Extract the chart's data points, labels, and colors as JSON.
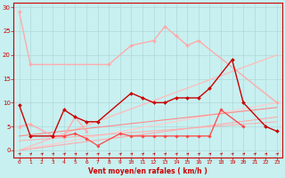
{
  "background_color": "#c8f0f0",
  "grid_color": "#b0d8d8",
  "xlabel": "Vent moyen/en rafales ( km/h )",
  "xlim": [
    -0.5,
    23.5
  ],
  "ylim": [
    -1.5,
    31
  ],
  "yticks": [
    0,
    5,
    10,
    15,
    20,
    25,
    30
  ],
  "xticks": [
    0,
    1,
    2,
    3,
    4,
    5,
    6,
    7,
    8,
    9,
    10,
    11,
    12,
    13,
    14,
    15,
    16,
    17,
    18,
    19,
    20,
    21,
    22,
    23
  ],
  "line1_x": [
    0,
    1,
    8,
    10,
    12,
    13,
    14,
    15,
    16,
    23
  ],
  "line1_y": [
    29,
    18,
    18,
    22,
    23,
    26,
    24,
    22,
    23,
    10
  ],
  "line1_color": "#ffaaaa",
  "line2_x": [
    0,
    1,
    3,
    4,
    5,
    6,
    7,
    10,
    11,
    12,
    13,
    14,
    15,
    16,
    17,
    19,
    20,
    22,
    23
  ],
  "line2_y": [
    9.5,
    3,
    3,
    8.5,
    7,
    6,
    6,
    12,
    11,
    10,
    10,
    11,
    11,
    11,
    13,
    19,
    10,
    5,
    4
  ],
  "line2_color": "#cc0000",
  "line3_x": [
    3,
    4,
    5,
    6,
    7,
    9,
    10,
    11,
    12,
    13,
    14,
    15,
    16,
    17,
    18,
    20
  ],
  "line3_y": [
    3,
    3,
    3.5,
    2.5,
    1,
    3.5,
    3,
    3,
    3,
    3,
    3,
    3,
    3,
    3,
    8.5,
    5
  ],
  "line3_color": "#ff4444",
  "line4_x": [
    0,
    1,
    3,
    4,
    5,
    6
  ],
  "line4_y": [
    5,
    5.5,
    3,
    3,
    7,
    4
  ],
  "line4_color": "#ffaaaa",
  "trend1": {
    "x": [
      0,
      23
    ],
    "y": [
      0,
      20
    ],
    "color": "#ffbbbb",
    "lw": 0.9
  },
  "trend2": {
    "x": [
      0,
      23
    ],
    "y": [
      0,
      10
    ],
    "color": "#ffcccc",
    "lw": 0.9
  },
  "trend3": {
    "x": [
      0,
      23
    ],
    "y": [
      0,
      7
    ],
    "color": "#ffaaaa",
    "lw": 0.8
  },
  "trend4": {
    "x": [
      0,
      23
    ],
    "y": [
      3,
      9
    ],
    "color": "#ff8888",
    "lw": 0.8
  },
  "trend5": {
    "x": [
      0,
      23
    ],
    "y": [
      2,
      6
    ],
    "color": "#ffaaaa",
    "lw": 0.7
  },
  "arrow_color": "#cc0000",
  "xlabel_color": "#cc0000",
  "tick_color": "#cc0000",
  "spine_color": "#cc0000"
}
